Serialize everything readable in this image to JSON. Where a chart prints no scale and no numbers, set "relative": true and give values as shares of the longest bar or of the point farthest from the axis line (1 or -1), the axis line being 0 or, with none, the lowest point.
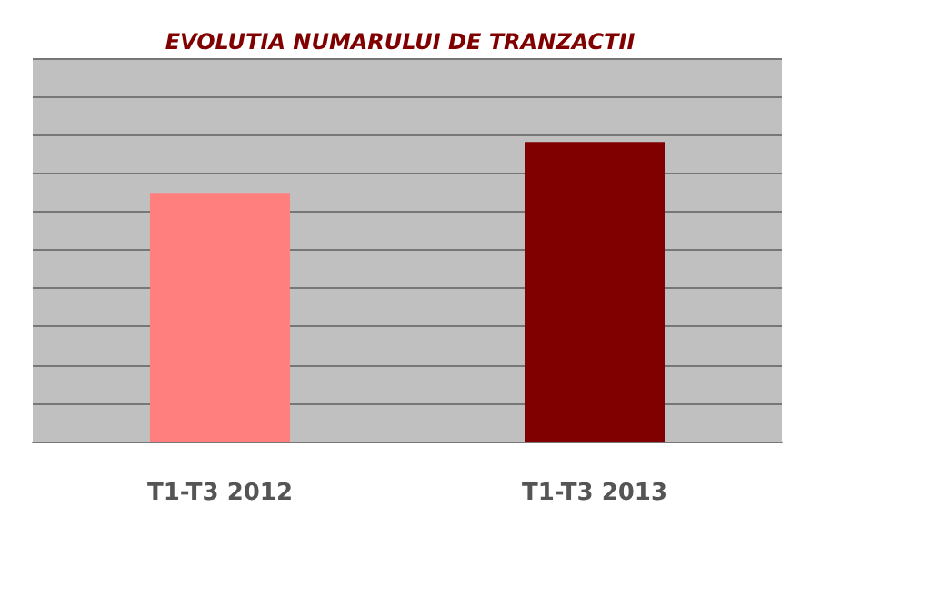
{
  "chart_data": {
    "type": "bar",
    "title": "EVOLUTIA NUMARULUI DE TRANZACTII",
    "categories": [
      "T1-T3 2012",
      "T1-T3 2013"
    ],
    "values": [
      0.83,
      1
    ],
    "colors": [
      "#ff7f7f",
      "#800000"
    ],
    "relative": true,
    "grid": "y"
  }
}
